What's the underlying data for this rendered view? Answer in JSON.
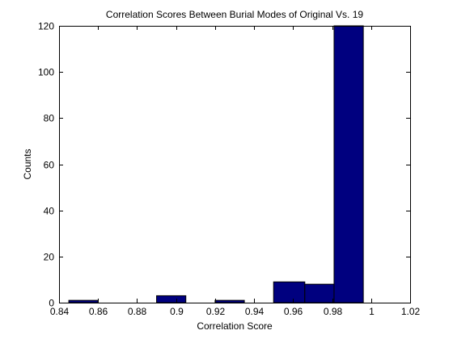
{
  "chart_data": {
    "type": "bar",
    "title": "Correlation Scores Between Burial Modes of Original Vs. 19",
    "xlabel": "Correlation Score",
    "ylabel": "Counts",
    "xlim": [
      0.84,
      1.02
    ],
    "ylim": [
      0,
      120
    ],
    "xticks": [
      "0.84",
      "0.86",
      "0.88",
      "0.9",
      "0.92",
      "0.94",
      "0.96",
      "0.98",
      "1",
      "1.02"
    ],
    "yticks": [
      "0",
      "20",
      "40",
      "60",
      "80",
      "100",
      "120"
    ],
    "bins": [
      {
        "x0": 0.845,
        "x1": 0.86,
        "count": 1
      },
      {
        "x0": 0.86,
        "x1": 0.875,
        "count": 0
      },
      {
        "x0": 0.875,
        "x1": 0.89,
        "count": 0
      },
      {
        "x0": 0.89,
        "x1": 0.905,
        "count": 3
      },
      {
        "x0": 0.905,
        "x1": 0.92,
        "count": 0
      },
      {
        "x0": 0.92,
        "x1": 0.935,
        "count": 1
      },
      {
        "x0": 0.935,
        "x1": 0.95,
        "count": 0
      },
      {
        "x0": 0.95,
        "x1": 0.966,
        "count": 9
      },
      {
        "x0": 0.966,
        "x1": 0.981,
        "count": 8
      },
      {
        "x0": 0.981,
        "x1": 0.996,
        "count": 120
      }
    ],
    "grid": false,
    "bar_color": "#00007f",
    "edge_color": "#000000"
  }
}
